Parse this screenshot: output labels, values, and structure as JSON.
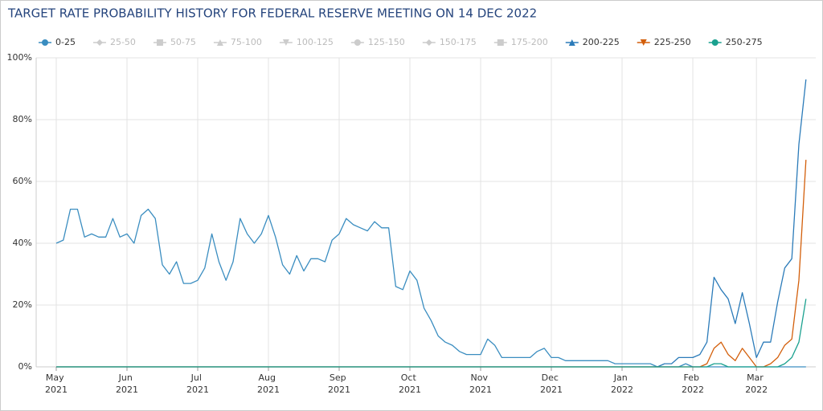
{
  "chart_data": {
    "type": "line",
    "title": "TARGET RATE PROBABILITY HISTORY FOR FEDERAL RESERVE MEETING ON 14 DEC 2022",
    "categories": [
      "May 2021",
      null,
      null,
      null,
      null,
      null,
      null,
      null,
      null,
      null,
      "Jun 2021",
      null,
      null,
      null,
      null,
      null,
      null,
      null,
      null,
      null,
      "Jul 2021",
      null,
      null,
      null,
      null,
      null,
      null,
      null,
      null,
      null,
      "Aug 2021",
      null,
      null,
      null,
      null,
      null,
      null,
      null,
      null,
      null,
      "Sep 2021",
      null,
      null,
      null,
      null,
      null,
      null,
      null,
      null,
      null,
      "Oct 2021",
      null,
      null,
      null,
      null,
      null,
      null,
      null,
      null,
      null,
      "Nov 2021",
      null,
      null,
      null,
      null,
      null,
      null,
      null,
      null,
      null,
      "Dec 2021",
      null,
      null,
      null,
      null,
      null,
      null,
      null,
      null,
      null,
      "Jan 2022",
      null,
      null,
      null,
      null,
      null,
      null,
      null,
      null,
      null,
      "Feb 2022",
      null,
      null,
      null,
      null,
      null,
      null,
      null,
      null,
      "Mar 2022",
      null,
      null,
      null,
      null,
      null,
      null,
      null
    ],
    "series": [
      {
        "name": "0-25",
        "color": "#3a8dc0",
        "marker": "circle",
        "visible": true,
        "values": [
          40,
          41,
          51,
          51,
          42,
          43,
          42,
          42,
          48,
          42,
          43,
          40,
          49,
          51,
          48,
          33,
          30,
          34,
          27,
          27,
          28,
          32,
          43,
          34,
          28,
          34,
          48,
          43,
          40,
          43,
          49,
          42,
          33,
          30,
          36,
          31,
          35,
          35,
          34,
          41,
          43,
          48,
          46,
          45,
          44,
          47,
          45,
          45,
          26,
          25,
          31,
          28,
          19,
          15,
          10,
          8,
          7,
          5,
          4,
          4,
          4,
          9,
          7,
          3,
          3,
          3,
          3,
          3,
          5,
          6,
          3,
          3,
          2,
          2,
          2,
          2,
          2,
          2,
          2,
          1,
          1,
          1,
          1,
          1,
          1,
          0,
          0,
          0,
          0,
          1,
          0,
          0,
          0,
          0,
          0,
          0,
          0,
          0,
          0,
          0,
          0,
          0,
          0,
          0,
          0,
          0,
          0
        ]
      },
      {
        "name": "25-50",
        "color": "#cccccc",
        "marker": "diamond",
        "visible": false
      },
      {
        "name": "50-75",
        "color": "#cccccc",
        "marker": "square",
        "visible": false
      },
      {
        "name": "75-100",
        "color": "#cccccc",
        "marker": "triangle",
        "visible": false
      },
      {
        "name": "100-125",
        "color": "#cccccc",
        "marker": "triangle-down",
        "visible": false
      },
      {
        "name": "125-150",
        "color": "#cccccc",
        "marker": "circle",
        "visible": false
      },
      {
        "name": "150-175",
        "color": "#cccccc",
        "marker": "diamond",
        "visible": false
      },
      {
        "name": "175-200",
        "color": "#cccccc",
        "marker": "square",
        "visible": false
      },
      {
        "name": "200-225",
        "color": "#2b7bb9",
        "marker": "triangle",
        "visible": true,
        "values": [
          0,
          0,
          0,
          0,
          0,
          0,
          0,
          0,
          0,
          0,
          0,
          0,
          0,
          0,
          0,
          0,
          0,
          0,
          0,
          0,
          0,
          0,
          0,
          0,
          0,
          0,
          0,
          0,
          0,
          0,
          0,
          0,
          0,
          0,
          0,
          0,
          0,
          0,
          0,
          0,
          0,
          0,
          0,
          0,
          0,
          0,
          0,
          0,
          0,
          0,
          0,
          0,
          0,
          0,
          0,
          0,
          0,
          0,
          0,
          0,
          0,
          0,
          0,
          0,
          0,
          0,
          0,
          0,
          0,
          0,
          0,
          0,
          0,
          0,
          0,
          0,
          0,
          0,
          0,
          0,
          0,
          0,
          0,
          0,
          0,
          0,
          1,
          1,
          3,
          3,
          3,
          4,
          8,
          29,
          25,
          22,
          14,
          24,
          14,
          3,
          8,
          8,
          21,
          32,
          35,
          72,
          93
        ]
      },
      {
        "name": "225-250",
        "color": "#d35f0b",
        "marker": "triangle-down",
        "visible": true,
        "values": [
          0,
          0,
          0,
          0,
          0,
          0,
          0,
          0,
          0,
          0,
          0,
          0,
          0,
          0,
          0,
          0,
          0,
          0,
          0,
          0,
          0,
          0,
          0,
          0,
          0,
          0,
          0,
          0,
          0,
          0,
          0,
          0,
          0,
          0,
          0,
          0,
          0,
          0,
          0,
          0,
          0,
          0,
          0,
          0,
          0,
          0,
          0,
          0,
          0,
          0,
          0,
          0,
          0,
          0,
          0,
          0,
          0,
          0,
          0,
          0,
          0,
          0,
          0,
          0,
          0,
          0,
          0,
          0,
          0,
          0,
          0,
          0,
          0,
          0,
          0,
          0,
          0,
          0,
          0,
          0,
          0,
          0,
          0,
          0,
          0,
          0,
          0,
          0,
          0,
          0,
          0,
          0,
          1,
          6,
          8,
          4,
          2,
          6,
          3,
          0,
          0,
          1,
          3,
          7,
          9,
          28,
          67
        ]
      },
      {
        "name": "250-275",
        "color": "#1aa18f",
        "marker": "circle",
        "visible": true,
        "values": [
          0,
          0,
          0,
          0,
          0,
          0,
          0,
          0,
          0,
          0,
          0,
          0,
          0,
          0,
          0,
          0,
          0,
          0,
          0,
          0,
          0,
          0,
          0,
          0,
          0,
          0,
          0,
          0,
          0,
          0,
          0,
          0,
          0,
          0,
          0,
          0,
          0,
          0,
          0,
          0,
          0,
          0,
          0,
          0,
          0,
          0,
          0,
          0,
          0,
          0,
          0,
          0,
          0,
          0,
          0,
          0,
          0,
          0,
          0,
          0,
          0,
          0,
          0,
          0,
          0,
          0,
          0,
          0,
          0,
          0,
          0,
          0,
          0,
          0,
          0,
          0,
          0,
          0,
          0,
          0,
          0,
          0,
          0,
          0,
          0,
          0,
          0,
          0,
          0,
          0,
          0,
          0,
          0,
          1,
          1,
          0,
          0,
          0,
          0,
          0,
          0,
          0,
          0,
          1,
          3,
          8,
          22
        ]
      }
    ],
    "ylim": [
      0,
      100
    ],
    "yticks": [
      {
        "value": 0,
        "label": "0%"
      },
      {
        "value": 20,
        "label": "20%"
      },
      {
        "value": 40,
        "label": "40%"
      },
      {
        "value": 60,
        "label": "60%"
      },
      {
        "value": 80,
        "label": "80%"
      },
      {
        "value": 100,
        "label": "100%"
      }
    ],
    "grid": true
  }
}
